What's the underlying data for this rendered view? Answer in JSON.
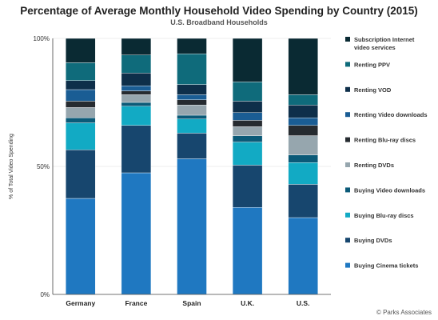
{
  "chart_data": {
    "type": "bar",
    "stacked": true,
    "title": "Percentage of Average Monthly Household Video Spending by Country (2015)",
    "subtitle": "U.S. Broadband Households",
    "ylabel": "% of Total Video Spending",
    "ylim": [
      0,
      100
    ],
    "yticks": [
      "0%",
      "50%",
      "100%"
    ],
    "categories": [
      "Germany",
      "France",
      "Spain",
      "U.K.",
      "U.S."
    ],
    "legend_position": "right",
    "series": [
      {
        "name": "Buying Cinema tickets",
        "color": "#1f78c1",
        "values": [
          37.5,
          47.5,
          53,
          34,
          30
        ]
      },
      {
        "name": "Buying DVDs",
        "color": "#17466e",
        "values": [
          19,
          18.5,
          10,
          16.5,
          13
        ]
      },
      {
        "name": "Buying Blu-ray discs",
        "color": "#12aac4",
        "values": [
          10.5,
          7.5,
          5.5,
          9,
          8.5
        ]
      },
      {
        "name": "Buying Video downloads",
        "color": "#0b5a78",
        "values": [
          2,
          1.5,
          1.5,
          2.5,
          3
        ]
      },
      {
        "name": "Renting DVDs",
        "color": "#96a6ae",
        "values": [
          4,
          3,
          4,
          3.5,
          7.5
        ]
      },
      {
        "name": "Renting Blu-ray discs",
        "color": "#262b30",
        "values": [
          2.5,
          1.5,
          2,
          2.5,
          4
        ]
      },
      {
        "name": "Renting Video downloads",
        "color": "#1a5d94",
        "values": [
          4.5,
          2,
          2,
          3,
          3
        ]
      },
      {
        "name": "Renting VOD",
        "color": "#0e2f4a",
        "values": [
          3.5,
          5,
          4,
          4.5,
          5
        ]
      },
      {
        "name": "Renting PPV",
        "color": "#0f6b7b",
        "values": [
          7,
          7,
          12,
          7.5,
          4
        ]
      },
      {
        "name": "Subscription Internet video services",
        "color": "#0a2a33",
        "values": [
          9.5,
          6.5,
          6,
          17,
          22
        ]
      }
    ]
  },
  "credit": "© Parks Associates"
}
